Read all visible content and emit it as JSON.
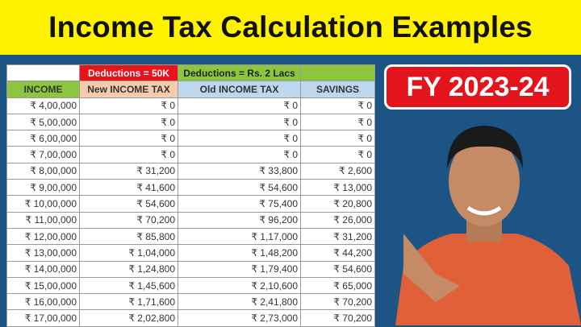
{
  "title": "Income Tax Calculation Examples",
  "badge": "FY 2023-24",
  "colors": {
    "banner": "#fff200",
    "background": "#1d5486",
    "badge": "#e3141c",
    "deduction_new": "#e8131b",
    "deduction_old": "#8cc63f",
    "income_header": "#8cc63f",
    "new_header": "#f8cbad",
    "old_header": "#bdd7ee",
    "savings_header": "#bdd7ee"
  },
  "table": {
    "deduction_new": "Deductions = 50K",
    "deduction_old": "Deductions = Rs. 2 Lacs",
    "headers": [
      "INCOME",
      "New INCOME TAX",
      "Old INCOME TAX",
      "SAVINGS"
    ],
    "rows": [
      [
        "₹ 4,00,000",
        "₹ 0",
        "₹ 0",
        "₹ 0"
      ],
      [
        "₹ 5,00,000",
        "₹ 0",
        "₹ 0",
        "₹ 0"
      ],
      [
        "₹ 6,00,000",
        "₹ 0",
        "₹ 0",
        "₹ 0"
      ],
      [
        "₹ 7,00,000",
        "₹ 0",
        "₹ 0",
        "₹ 0"
      ],
      [
        "₹ 8,00,000",
        "₹ 31,200",
        "₹ 33,800",
        "₹ 2,600"
      ],
      [
        "₹ 9,00,000",
        "₹ 41,600",
        "₹ 54,600",
        "₹ 13,000"
      ],
      [
        "₹ 10,00,000",
        "₹ 54,600",
        "₹ 75,400",
        "₹ 20,800"
      ],
      [
        "₹ 11,00,000",
        "₹ 70,200",
        "₹ 96,200",
        "₹ 26,000"
      ],
      [
        "₹ 12,00,000",
        "₹ 85,800",
        "₹ 1,17,000",
        "₹ 31,200"
      ],
      [
        "₹ 13,00,000",
        "₹ 1,04,000",
        "₹ 1,48,200",
        "₹ 44,200"
      ],
      [
        "₹ 14,00,000",
        "₹ 1,24,800",
        "₹ 1,79,400",
        "₹ 54,600"
      ],
      [
        "₹ 15,00,000",
        "₹ 1,45,600",
        "₹ 2,10,600",
        "₹ 65,000"
      ],
      [
        "₹ 16,00,000",
        "₹ 1,71,600",
        "₹ 2,41,800",
        "₹ 70,200"
      ],
      [
        "₹ 17,00,000",
        "₹ 2,02,800",
        "₹ 2,73,000",
        "₹ 70,200"
      ]
    ]
  }
}
